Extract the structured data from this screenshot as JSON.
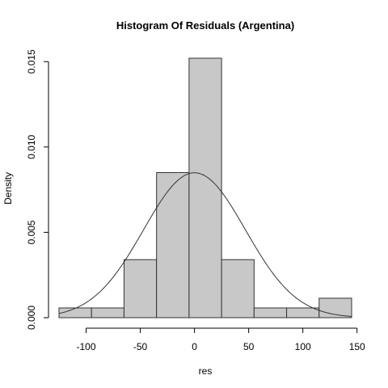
{
  "chart_data": {
    "type": "bar",
    "title": "Histogram Of Residuals (Argentina)",
    "xlabel": "res",
    "ylabel": "Density",
    "bin_edges": [
      -125,
      -95,
      -65,
      -35,
      -5,
      25,
      55,
      85,
      115,
      145
    ],
    "densities": [
      0.00057,
      0.00057,
      0.0034,
      0.0085,
      0.0152,
      0.0034,
      0.00057,
      0.00057,
      0.00114
    ],
    "normal_curve": {
      "mean": 0,
      "sd": 47
    },
    "xlim": [
      -125,
      145
    ],
    "ylim": [
      0,
      0.0152
    ],
    "x_ticks": [
      -100,
      -50,
      0,
      50,
      100,
      150
    ],
    "x_tick_labels": [
      "-100",
      "-50",
      "0",
      "50",
      "100",
      "150"
    ],
    "y_ticks": [
      0,
      0.005,
      0.01,
      0.015
    ],
    "y_tick_labels": [
      "0.000",
      "0.005",
      "0.010",
      "0.015"
    ],
    "grid": false,
    "legend": "none"
  }
}
